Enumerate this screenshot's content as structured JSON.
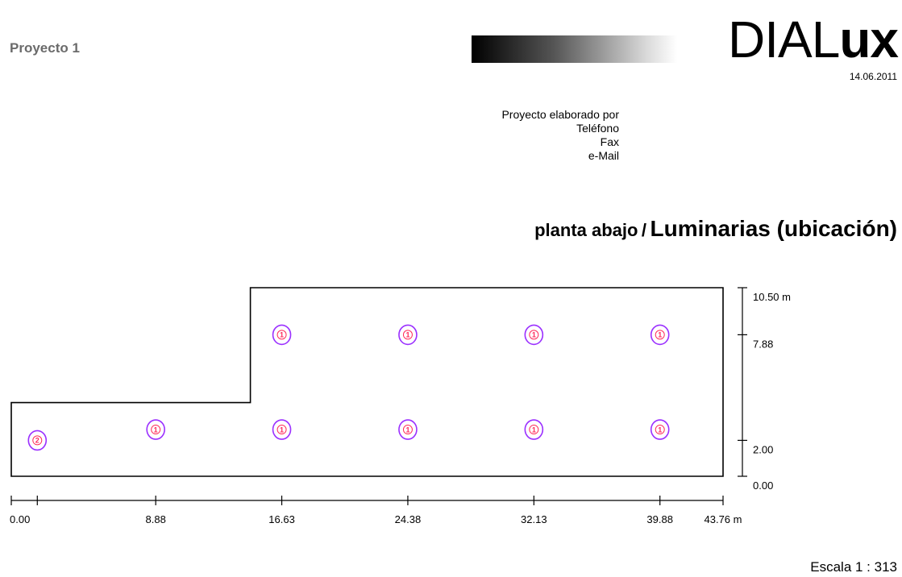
{
  "header": {
    "project_name": "Proyecto 1",
    "logo_thin": "DIAL",
    "logo_bold": "ux",
    "date": "14.06.2011"
  },
  "contact": {
    "elaborated_by": "Proyecto elaborado por",
    "phone": "Teléfono",
    "fax": "Fax",
    "email": "e-Mail"
  },
  "plan": {
    "title_part1": "planta abajo",
    "separator": "/",
    "title_part2": "Luminarias (ubicación)",
    "scale": "Escala 1 : 313"
  },
  "chart_data": {
    "type": "scatter",
    "units": "m",
    "x_range": [
      0,
      43.76
    ],
    "y_range": [
      0,
      10.5
    ],
    "x_ticks": [
      {
        "value": 0,
        "label": "0.00"
      },
      {
        "value": 1.6,
        "label": ""
      },
      {
        "value": 8.88,
        "label": "8.88"
      },
      {
        "value": 16.63,
        "label": "16.63"
      },
      {
        "value": 24.38,
        "label": "24.38"
      },
      {
        "value": 32.13,
        "label": "32.13"
      },
      {
        "value": 39.88,
        "label": "39.88"
      },
      {
        "value": 43.76,
        "label": "43.76 m"
      }
    ],
    "y_ticks": [
      {
        "value": 0,
        "label": "0.00"
      },
      {
        "value": 2.0,
        "label": "2.00"
      },
      {
        "value": 7.88,
        "label": "7.88"
      },
      {
        "value": 10.5,
        "label": "10.50 m"
      }
    ],
    "room_outline": [
      [
        0,
        0
      ],
      [
        43.76,
        0
      ],
      [
        43.76,
        10.5
      ],
      [
        14.7,
        10.5
      ],
      [
        14.7,
        4.1
      ],
      [
        0,
        4.1
      ]
    ],
    "luminaires": [
      {
        "x": 1.6,
        "y": 2.0,
        "label": "2"
      },
      {
        "x": 8.88,
        "y": 2.6,
        "label": "1"
      },
      {
        "x": 16.63,
        "y": 2.6,
        "label": "1"
      },
      {
        "x": 24.38,
        "y": 2.6,
        "label": "1"
      },
      {
        "x": 32.13,
        "y": 2.6,
        "label": "1"
      },
      {
        "x": 39.88,
        "y": 2.6,
        "label": "1"
      },
      {
        "x": 16.63,
        "y": 7.88,
        "label": "1"
      },
      {
        "x": 24.38,
        "y": 7.88,
        "label": "1"
      },
      {
        "x": 32.13,
        "y": 7.88,
        "label": "1"
      },
      {
        "x": 39.88,
        "y": 7.88,
        "label": "1"
      }
    ],
    "colors": {
      "luminaire_stroke": "#9b30ff",
      "luminaire_label": "#ff2a5a",
      "outline": "#000000"
    }
  }
}
